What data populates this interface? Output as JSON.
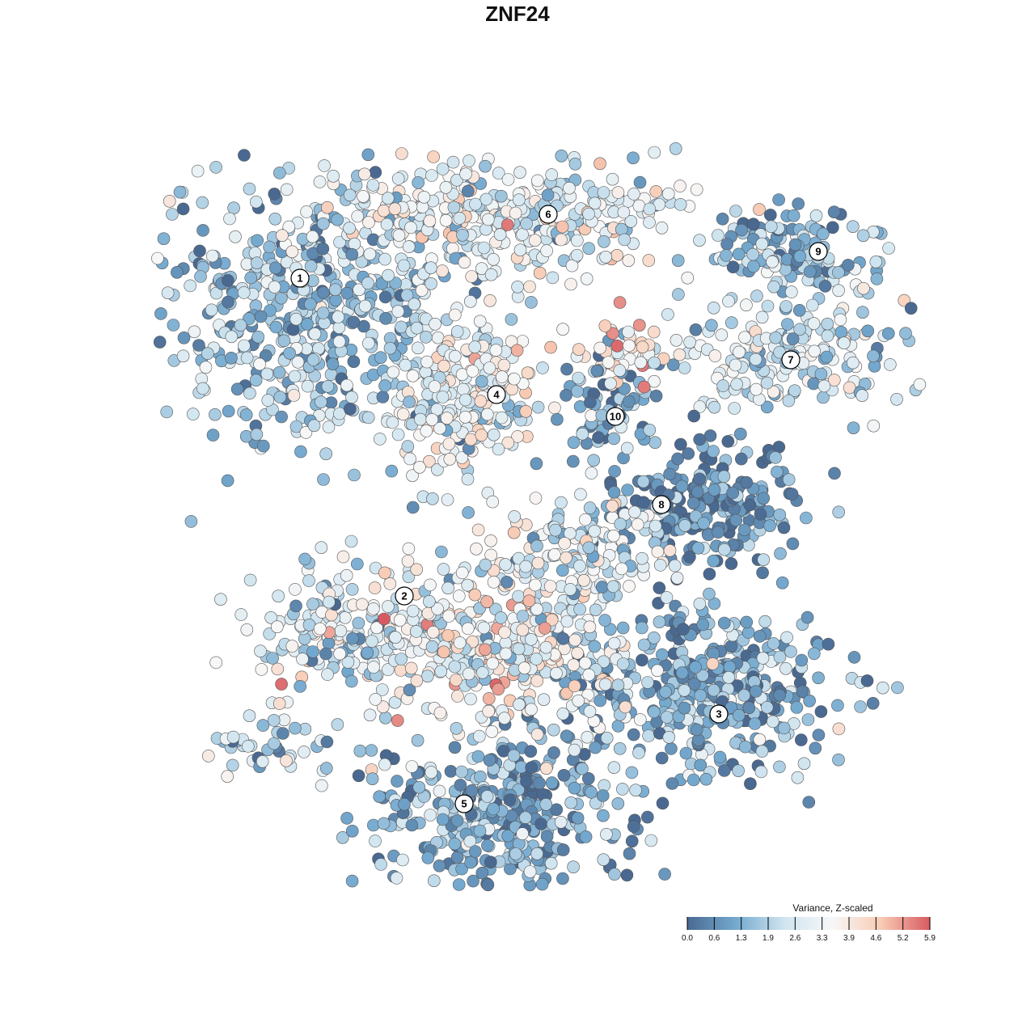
{
  "chart_data": {
    "type": "scatter",
    "title": "ZNF24",
    "xlabel": "",
    "ylabel": "",
    "grid": false,
    "legend": {
      "title": "Variance, Z-scaled",
      "position": "bottom-right",
      "ticks": [
        "0.0",
        "0.6",
        "1.3",
        "1.9",
        "2.6",
        "3.3",
        "3.9",
        "4.6",
        "5.2",
        "5.9"
      ],
      "range": [
        0.0,
        5.9
      ],
      "colors": [
        "#4a6991",
        "#74a9cf",
        "#d0e5f0",
        "#f7f7f7",
        "#f8cbb4",
        "#d75a62"
      ]
    },
    "clusters": [
      {
        "label": "1",
        "value": 1.7
      },
      {
        "label": "2",
        "value": 2.6
      },
      {
        "label": "3",
        "value": 1.3
      },
      {
        "label": "4",
        "value": 3.0
      },
      {
        "label": "5",
        "value": 1.2
      },
      {
        "label": "6",
        "value": 2.9
      },
      {
        "label": "7",
        "value": 2.4
      },
      {
        "label": "8",
        "value": 0.6
      },
      {
        "label": "9",
        "value": 1.4
      },
      {
        "label": "10",
        "value": 0.9
      }
    ]
  }
}
